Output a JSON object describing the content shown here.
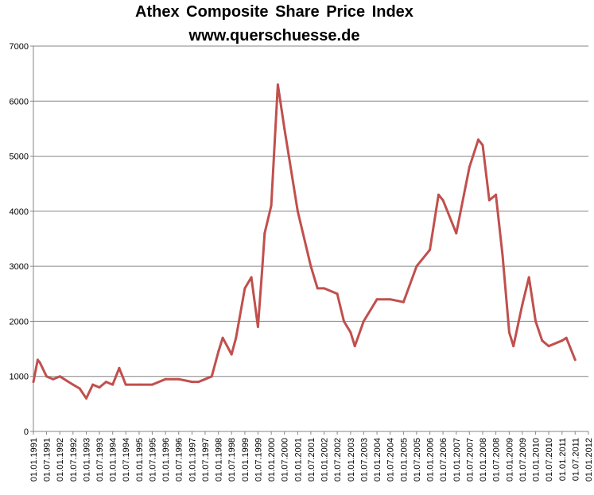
{
  "chart_data": {
    "type": "line",
    "title": "Athex Composite Share Price Index",
    "subtitle": "www.querschuesse.de",
    "xlabel": "",
    "ylabel": "",
    "ylim": [
      0,
      7000
    ],
    "y_ticks": [
      "0",
      "1000",
      "2000",
      "3000",
      "4000",
      "5000",
      "6000",
      "7000"
    ],
    "x_ticks": [
      "01.01.1991",
      "01.07.1991",
      "01.01.1992",
      "01.07.1992",
      "01.01.1993",
      "01.07.1993",
      "01.01.1994",
      "01.07.1994",
      "01.01.1995",
      "01.07.1995",
      "01.01.1996",
      "01.07.1996",
      "01.01.1997",
      "01.07.1997",
      "01.01.1998",
      "01.07.1998",
      "01.01.1999",
      "01.07.1999",
      "01.01.2000",
      "01.07.2000",
      "01.01.2001",
      "01.07.2001",
      "01.01.2002",
      "01.07.2002",
      "01.01.2003",
      "01.07.2003",
      "01.01.2004",
      "01.07.2004",
      "01.01.2005",
      "01.07.2005",
      "01.01.2006",
      "01.07.2006",
      "01.01.2007",
      "01.07.2007",
      "01.01.2008",
      "01.07.2008",
      "01.01.2009",
      "01.07.2009",
      "01.01.2010",
      "01.07.2010",
      "01.01.2011",
      "01.07.2011",
      "01.01.2012"
    ],
    "grid": true,
    "line_color": "#c0504d",
    "series": [
      {
        "x": [
          "01.01.1991",
          "01.03.1991",
          "01.04.1991",
          "01.07.1991",
          "01.10.1991",
          "01.01.1992",
          "01.07.1992",
          "01.10.1992",
          "01.01.1993",
          "01.04.1993",
          "01.07.1993",
          "01.10.1993",
          "01.01.1994",
          "01.04.1994",
          "01.07.1994",
          "01.01.1995",
          "01.07.1995",
          "01.01.1996",
          "01.07.1996",
          "01.01.1997",
          "01.04.1997",
          "01.07.1997",
          "01.10.1997",
          "01.01.1998",
          "01.03.1998",
          "01.07.1998",
          "01.09.1998",
          "01.01.1999",
          "01.04.1999",
          "01.07.1999",
          "01.09.1999",
          "01.10.1999",
          "01.01.2000",
          "01.04.2000",
          "01.07.2000",
          "01.01.2001",
          "01.07.2001",
          "01.10.2001",
          "01.01.2002",
          "01.07.2002",
          "01.10.2002",
          "01.01.2003",
          "01.03.2003",
          "01.07.2003",
          "01.01.2004",
          "01.07.2004",
          "01.01.2005",
          "01.07.2005",
          "01.01.2006",
          "01.05.2006",
          "01.07.2006",
          "01.01.2007",
          "01.07.2007",
          "01.11.2007",
          "01.01.2008",
          "01.04.2008",
          "01.07.2008",
          "01.10.2008",
          "01.01.2009",
          "01.03.2009",
          "01.07.2009",
          "01.10.2009",
          "01.01.2010",
          "01.04.2010",
          "01.07.2010",
          "01.01.2011",
          "01.03.2011",
          "01.07.2011"
        ],
        "values": [
          900,
          1300,
          1250,
          1000,
          950,
          1000,
          850,
          780,
          600,
          850,
          800,
          900,
          850,
          1150,
          850,
          850,
          850,
          950,
          950,
          900,
          900,
          950,
          1000,
          1450,
          1700,
          1400,
          1700,
          2600,
          2800,
          1900,
          3000,
          3600,
          4100,
          6300,
          5500,
          4000,
          3000,
          2600,
          2600,
          2500,
          2000,
          1800,
          1550,
          2000,
          2400,
          2400,
          2350,
          3000,
          3300,
          4300,
          4200,
          3600,
          4800,
          5300,
          5200,
          4200,
          4300,
          3200,
          1800,
          1550,
          2300,
          2800,
          2000,
          1650,
          1550,
          1650,
          1700,
          1300
        ]
      }
    ]
  }
}
